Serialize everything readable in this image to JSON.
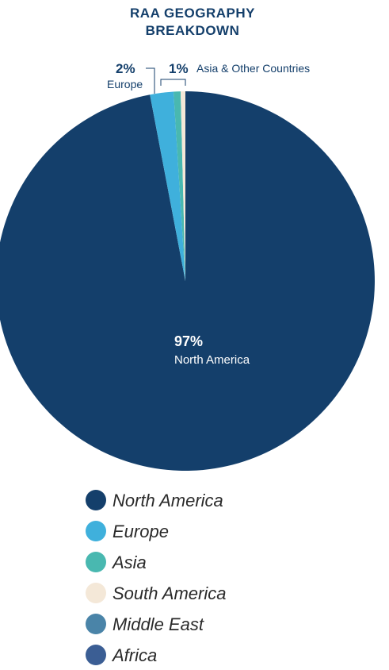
{
  "chart_data": {
    "type": "pie",
    "title_lines": [
      "RAA GEOGRAPHY",
      "BREAKDOWN"
    ],
    "slices": [
      {
        "label": "North America",
        "value": 97,
        "color": "#143f6b"
      },
      {
        "label": "Europe",
        "value": 2,
        "color": "#3fb0dc"
      },
      {
        "label": "Asia",
        "value": 0.6,
        "color": "#49b8b0"
      },
      {
        "label": "South America",
        "value": 0.4,
        "color": "#f4e8d8"
      },
      {
        "label": "Middle East",
        "value": 0,
        "color": "#4a84a8"
      },
      {
        "label": "Africa",
        "value": 0,
        "color": "#3b5e94"
      }
    ],
    "callouts": {
      "north_america": {
        "pct": "97%",
        "label": "North America"
      },
      "europe": {
        "pct": "2%",
        "label": "Europe"
      },
      "asia_other": {
        "pct": "1%",
        "label": "Asia & Other Countries"
      }
    },
    "legend": [
      {
        "label": "North America",
        "color": "#143f6b"
      },
      {
        "label": "Europe",
        "color": "#3fb0dc"
      },
      {
        "label": "Asia",
        "color": "#49b8b0"
      },
      {
        "label": "South America",
        "color": "#f4e8d8"
      },
      {
        "label": "Middle East",
        "color": "#4a84a8"
      },
      {
        "label": "Africa",
        "color": "#3b5e94"
      }
    ],
    "colors": {
      "text": "#143f6b",
      "leader": "#143f6b"
    },
    "legend_placement": "bottom"
  }
}
